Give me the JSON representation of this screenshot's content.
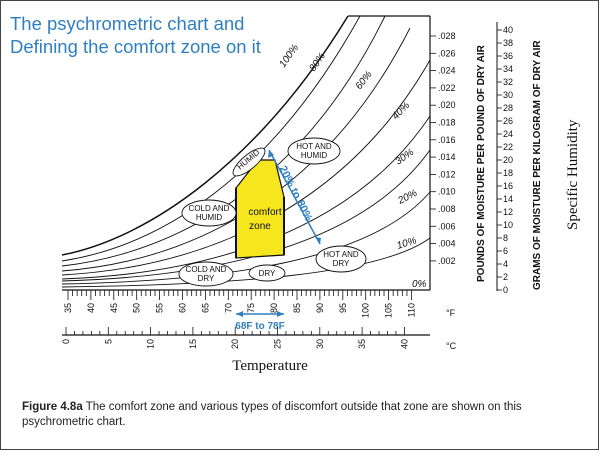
{
  "title": "The psychrometric chart and\nDefining the comfort zone on it",
  "caption": {
    "figure": "Figure 4.8a",
    "text": " The comfort zone and various types of discomfort outside that zone are shown on this psychrometric chart."
  },
  "rh_curves": [
    "100%",
    "80%",
    "60%",
    "40%",
    "30%",
    "20%",
    "10%",
    "0%"
  ],
  "regions": {
    "humid": "HUMID",
    "hot_humid": [
      "HOT AND",
      "HUMID"
    ],
    "cold_humid": [
      "COLD AND",
      "HUMID"
    ],
    "cold_dry": [
      "COLD AND",
      "DRY"
    ],
    "dry": "DRY",
    "hot_dry": [
      "HOT AND",
      "DRY"
    ]
  },
  "comfort": {
    "label_1": "comfort",
    "label_2": "zone",
    "rh_range": "20% to 80%",
    "temp_range": "68F to 78F",
    "color": "#f5e61d"
  },
  "axes": {
    "f_ticks": [
      "35",
      "40",
      "45",
      "50",
      "55",
      "60",
      "65",
      "70",
      "75",
      "80",
      "85",
      "90",
      "95",
      "100",
      "105",
      "110"
    ],
    "f_unit": "°F",
    "c_ticks": [
      "0",
      "5",
      "10",
      "15",
      "20",
      "25",
      "30",
      "35",
      "40"
    ],
    "c_unit": "°C",
    "xlabel": "Temperature",
    "lb_ticks": [
      ".028",
      ".026",
      ".024",
      ".022",
      ".020",
      ".018",
      ".016",
      ".014",
      ".012",
      ".010",
      ".008",
      ".006",
      ".004",
      ".002"
    ],
    "g_ticks": [
      "40",
      "38",
      "36",
      "34",
      "32",
      "30",
      "28",
      "26",
      "24",
      "22",
      "20",
      "18",
      "16",
      "14",
      "12",
      "10",
      "8",
      "6",
      "4",
      "2",
      "0"
    ],
    "lb_label": "POUNDS OF MOISTURE PER POUND OF DRY AIR",
    "g_label": "GRAMS OF MOISTURE PER KILOGRAM OF DRY AIR",
    "spec_label": "Specific Humidity"
  },
  "accent": "#2f7fc1"
}
